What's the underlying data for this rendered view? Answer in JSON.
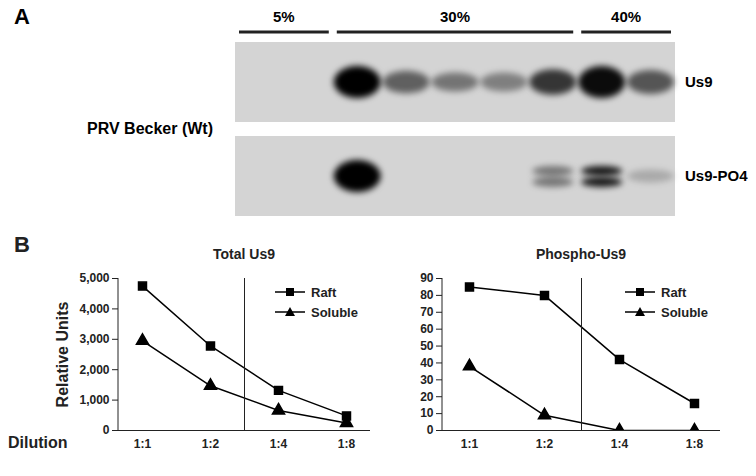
{
  "panels": [
    "A",
    "B"
  ],
  "blot": {
    "row_label": "PRV Becker (Wt)",
    "gradient": [
      "5%",
      "30%",
      "40%"
    ],
    "bands": [
      "Us9",
      "Us9-PO4"
    ]
  },
  "chart_data": [
    {
      "type": "line",
      "title": "Total Us9",
      "x_label": "Dilution",
      "y_label": "Relative Units",
      "categories": [
        "1:1",
        "1:2",
        "1:4",
        "1:8"
      ],
      "series": [
        {
          "name": "Raft",
          "color": "#000000",
          "marker": "square",
          "values": [
            4750,
            2780,
            1320,
            480
          ]
        },
        {
          "name": "Soluble",
          "color": "#000000",
          "marker": "triangle",
          "values": [
            2950,
            1470,
            660,
            250
          ]
        }
      ],
      "ylim": [
        0,
        5000
      ],
      "yticks": [
        0,
        1000,
        2000,
        3000,
        4000,
        5000
      ],
      "legend": "upper right"
    },
    {
      "type": "line",
      "title": "Phospho-Us9",
      "categories": [
        "1:1",
        "1:2",
        "1:4",
        "1:8"
      ],
      "series": [
        {
          "name": "Raft",
          "color": "#000000",
          "marker": "square",
          "values": [
            85,
            80,
            42,
            16
          ]
        },
        {
          "name": "Soluble",
          "color": "#000000",
          "marker": "triangle",
          "values": [
            38,
            9,
            0,
            0
          ]
        }
      ],
      "ylim": [
        0,
        90
      ],
      "yticks": [
        0,
        10,
        20,
        30,
        40,
        50,
        60,
        70,
        80,
        90
      ],
      "legend": "upper right"
    }
  ]
}
